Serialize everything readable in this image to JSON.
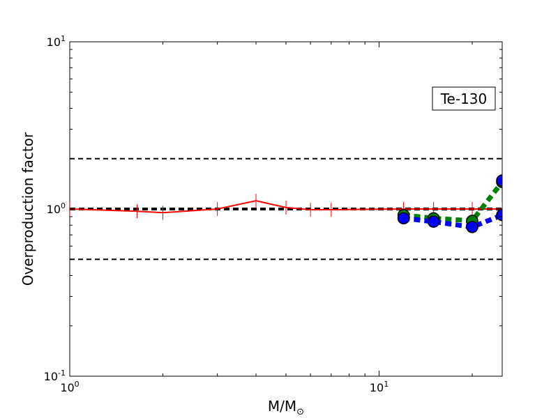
{
  "chart_data": {
    "type": "line",
    "title": "",
    "xlabel": {
      "main": "M/M",
      "sub": "⊙"
    },
    "ylabel": "Overproduction factor",
    "xscale": "log",
    "yscale": "log",
    "xlim": [
      1,
      25
    ],
    "ylim": [
      0.1,
      10
    ],
    "xticks": [
      {
        "value": 1,
        "base": "10",
        "exp": "0"
      },
      {
        "value": 10,
        "base": "10",
        "exp": "1"
      }
    ],
    "yticks": [
      {
        "value": 0.1,
        "base": "10",
        "exp": "-1"
      },
      {
        "value": 1,
        "base": "10",
        "exp": "0"
      },
      {
        "value": 10,
        "base": "10",
        "exp": "1"
      }
    ],
    "annotation": "Te-130",
    "annotation_position": "upper-right",
    "reference_lines": [
      {
        "y": 2.0,
        "style": "dashed",
        "color": "#000000",
        "width": "thin"
      },
      {
        "y": 1.0,
        "style": "dashed",
        "color": "#000000",
        "width": "thick"
      },
      {
        "y": 0.5,
        "style": "dashed",
        "color": "#000000",
        "width": "thin"
      }
    ],
    "series": [
      {
        "style": "solid",
        "color": "#ff0000",
        "marker": "vertical-tick",
        "x": [
          1,
          1.65,
          2,
          3,
          4,
          5,
          6,
          7,
          12,
          15,
          20,
          25
        ],
        "y": [
          1.0,
          0.97,
          0.95,
          1.0,
          1.12,
          1.02,
          0.99,
          0.99,
          1.0,
          1.0,
          1.0,
          1.0
        ]
      },
      {
        "style": "dashed",
        "color": "#008000",
        "marker": "circle",
        "x": [
          12,
          15,
          20,
          25
        ],
        "y": [
          0.92,
          0.88,
          0.85,
          1.45
        ]
      },
      {
        "style": "dashed",
        "color": "#0000ff",
        "marker": "circle",
        "x": [
          12,
          15,
          20,
          25
        ],
        "y": [
          0.88,
          0.84,
          0.78,
          0.92
        ]
      },
      {
        "style": "dashed",
        "color": "#0000ff",
        "marker": "circle",
        "x": [
          25
        ],
        "y": [
          1.48
        ]
      }
    ]
  }
}
